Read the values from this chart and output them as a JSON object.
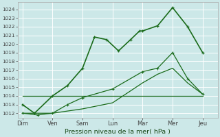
{
  "x_labels": [
    "Dim",
    "Ven",
    "Sam",
    "Lun",
    "Mar",
    "Mer",
    "Jeu"
  ],
  "x_ticks": [
    0,
    1,
    2,
    3,
    4,
    5,
    6
  ],
  "line1_x": [
    0,
    0.4,
    1.0,
    1.5,
    2.0,
    2.4,
    2.8,
    3.2,
    3.6,
    3.9,
    4.0,
    4.5,
    5.0,
    5.5,
    6.0
  ],
  "line1_y": [
    1013,
    1012,
    1014,
    1015.2,
    1017.2,
    1020.8,
    1020.5,
    1019.2,
    1020.5,
    1021.5,
    1021.5,
    1022.1,
    1024.2,
    1022.0,
    1019.0
  ],
  "line2_x": [
    0,
    1,
    2,
    3,
    4,
    5,
    6
  ],
  "line2_y": [
    1014,
    1014,
    1014,
    1014,
    1014,
    1014,
    1014
  ],
  "line3_x": [
    0,
    0.5,
    1.0,
    1.5,
    2.0,
    3.0,
    4.0,
    4.5,
    5.0,
    5.5,
    6.0
  ],
  "line3_y": [
    1012,
    1011.8,
    1012.0,
    1013.0,
    1013.8,
    1014.8,
    1016.8,
    1017.2,
    1019.0,
    1016.0,
    1014.2
  ],
  "line4_x": [
    0,
    1,
    2,
    3,
    4,
    4.5,
    5,
    5.5,
    6.0
  ],
  "line4_y": [
    1012,
    1012,
    1012.5,
    1013.2,
    1015.5,
    1016.5,
    1017.2,
    1015.5,
    1014.2
  ],
  "ylim": [
    1011.5,
    1024.8
  ],
  "xlim": [
    -0.15,
    6.5
  ],
  "yticks": [
    1012,
    1013,
    1014,
    1015,
    1016,
    1017,
    1018,
    1019,
    1020,
    1021,
    1022,
    1023,
    1024
  ],
  "xlabel": "Pression niveau de la mer( hPa )",
  "background_color": "#cce8e8",
  "grid_color": "#ffffff",
  "line_color": "#1a6b1a",
  "tick_color": "#444444",
  "xlabel_color": "#1a4a1a"
}
